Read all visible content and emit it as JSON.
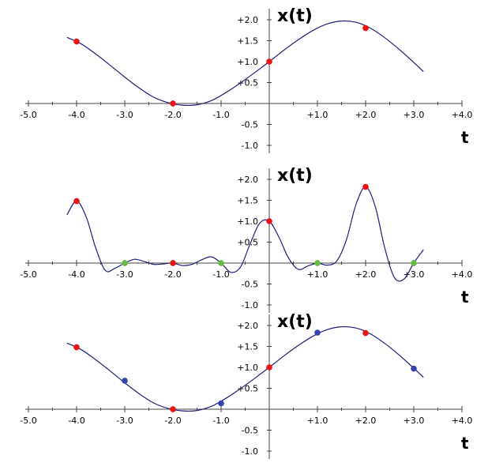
{
  "chart_data": [
    {
      "type": "line",
      "ylabel": "x(t)",
      "xlabel": "t",
      "xlim": [
        -5.0,
        4.0
      ],
      "ylim": [
        -1.0,
        2.0
      ],
      "x_ticks": [
        "-5.0",
        "-4.0",
        "-3.0",
        "-2.0",
        "-1.0",
        "+1.0",
        "+2.0",
        "+3.0",
        "+4.0"
      ],
      "y_ticks": [
        "+2.0",
        "+1.5",
        "+1.0",
        "+0.5",
        "-0.5",
        "-1.0"
      ],
      "curve_color": "#1f1f7a",
      "series": [
        {
          "x": [
            -4.2,
            -3.9,
            -3.6,
            -3.3,
            -3.0,
            -2.7,
            -2.4,
            -2.1,
            -1.8,
            -1.5,
            -1.2,
            -0.9,
            -0.6,
            -0.3,
            0.0,
            0.3,
            0.6,
            0.9,
            1.2,
            1.5,
            1.8,
            2.1,
            2.4,
            2.7,
            3.0,
            3.2
          ],
          "y": [
            1.58,
            1.42,
            1.18,
            0.91,
            0.63,
            0.37,
            0.15,
            0.02,
            -0.04,
            -0.03,
            0.07,
            0.26,
            0.49,
            0.74,
            1.0,
            1.27,
            1.52,
            1.74,
            1.9,
            1.97,
            1.94,
            1.8,
            1.57,
            1.29,
            0.98,
            0.76
          ]
        }
      ],
      "points": [
        {
          "x": -4.0,
          "y": 1.48,
          "color": "#ee1111"
        },
        {
          "x": -2.0,
          "y": 0.0,
          "color": "#ee1111"
        },
        {
          "x": 0.0,
          "y": 1.0,
          "color": "#ee1111"
        },
        {
          "x": 2.0,
          "y": 1.8,
          "color": "#ee1111"
        }
      ]
    },
    {
      "type": "line",
      "ylabel": "x(t)",
      "xlabel": "t",
      "xlim": [
        -5.0,
        4.0
      ],
      "ylim": [
        -1.0,
        2.0
      ],
      "x_ticks": [
        "-5.0",
        "-4.0",
        "-3.0",
        "-2.0",
        "-1.0",
        "+1.0",
        "+2.0",
        "+3.0",
        "+4.0"
      ],
      "y_ticks": [
        "+2.0",
        "+1.5",
        "+1.0",
        "+0.5",
        "-0.5",
        "-1.0"
      ],
      "curve_color": "#1f1f7a",
      "series": [
        {
          "x": [
            -4.2,
            -4.0,
            -3.8,
            -3.6,
            -3.4,
            -3.2,
            -3.0,
            -2.8,
            -2.6,
            -2.4,
            -2.2,
            -2.0,
            -1.8,
            -1.6,
            -1.4,
            -1.2,
            -1.0,
            -0.8,
            -0.6,
            -0.4,
            -0.2,
            0.0,
            0.2,
            0.4,
            0.6,
            0.8,
            1.0,
            1.2,
            1.4,
            1.6,
            1.8,
            2.0,
            2.2,
            2.4,
            2.6,
            2.8,
            3.0,
            3.2
          ],
          "y": [
            1.15,
            1.48,
            1.1,
            0.35,
            -0.18,
            -0.12,
            0.0,
            0.09,
            0.04,
            -0.03,
            -0.02,
            0.0,
            -0.06,
            -0.03,
            0.08,
            0.15,
            0.0,
            -0.22,
            -0.1,
            0.45,
            0.95,
            1.0,
            0.62,
            0.12,
            -0.15,
            -0.07,
            0.0,
            -0.05,
            0.05,
            0.55,
            1.4,
            1.82,
            1.35,
            0.35,
            -0.35,
            -0.38,
            0.0,
            0.32
          ]
        }
      ],
      "points": [
        {
          "x": -4.0,
          "y": 1.48,
          "color": "#ee1111"
        },
        {
          "x": -3.0,
          "y": 0.0,
          "color": "#66bb44"
        },
        {
          "x": -2.0,
          "y": 0.0,
          "color": "#ee1111"
        },
        {
          "x": -1.0,
          "y": 0.0,
          "color": "#66bb44"
        },
        {
          "x": 0.0,
          "y": 1.0,
          "color": "#ee1111"
        },
        {
          "x": 1.0,
          "y": 0.0,
          "color": "#66bb44"
        },
        {
          "x": 2.0,
          "y": 1.82,
          "color": "#ee1111"
        },
        {
          "x": 3.0,
          "y": 0.0,
          "color": "#66bb44"
        }
      ]
    },
    {
      "type": "line",
      "ylabel": "x(t)",
      "xlabel": "t",
      "xlim": [
        -5.0,
        4.0
      ],
      "ylim": [
        -1.0,
        2.0
      ],
      "x_ticks": [
        "-5.0",
        "-4.0",
        "-3.0",
        "-2.0",
        "-1.0",
        "+1.0",
        "+2.0",
        "+3.0",
        "+4.0"
      ],
      "y_ticks": [
        "+2.0",
        "+1.5",
        "+1.0",
        "+0.5",
        "-0.5",
        "-1.0"
      ],
      "curve_color": "#1f1f7a",
      "series": [
        {
          "x": [
            -4.2,
            -3.9,
            -3.6,
            -3.3,
            -3.0,
            -2.7,
            -2.4,
            -2.1,
            -1.8,
            -1.5,
            -1.2,
            -0.9,
            -0.6,
            -0.3,
            0.0,
            0.3,
            0.6,
            0.9,
            1.2,
            1.5,
            1.8,
            2.1,
            2.4,
            2.7,
            3.0,
            3.2
          ],
          "y": [
            1.58,
            1.42,
            1.18,
            0.91,
            0.63,
            0.37,
            0.15,
            0.02,
            -0.04,
            -0.03,
            0.07,
            0.26,
            0.49,
            0.74,
            1.0,
            1.27,
            1.52,
            1.74,
            1.9,
            1.97,
            1.94,
            1.8,
            1.57,
            1.29,
            0.98,
            0.76
          ]
        }
      ],
      "points": [
        {
          "x": -4.0,
          "y": 1.48,
          "color": "#ee1111"
        },
        {
          "x": -3.0,
          "y": 0.68,
          "color": "#3344aa"
        },
        {
          "x": -2.0,
          "y": 0.0,
          "color": "#ee1111"
        },
        {
          "x": -1.0,
          "y": 0.14,
          "color": "#3344aa"
        },
        {
          "x": 0.0,
          "y": 1.0,
          "color": "#ee1111"
        },
        {
          "x": 1.0,
          "y": 1.83,
          "color": "#3344aa"
        },
        {
          "x": 2.0,
          "y": 1.82,
          "color": "#ee1111"
        },
        {
          "x": 3.0,
          "y": 0.97,
          "color": "#3344aa"
        }
      ]
    }
  ]
}
